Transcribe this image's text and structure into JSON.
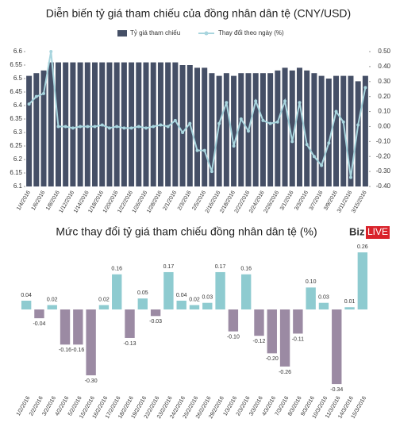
{
  "chart_data": [
    {
      "type": "bar-line",
      "title": "Diễn biến tỷ giá tham chiếu của đồng nhân dân tệ (CNY/USD)",
      "categories": [
        "1/4/2016",
        null,
        "1/6/2016",
        null,
        "1/8/2016",
        null,
        "1/12/2016",
        null,
        "1/14/2016",
        null,
        "1/18/2016",
        null,
        "1/20/2016",
        null,
        "1/22/2016",
        null,
        "1/26/2016",
        null,
        "1/28/2016",
        null,
        "2/1/2016",
        null,
        "2/3/2016",
        null,
        "2/5/2016",
        null,
        "2/16/2016",
        null,
        "2/18/2016",
        null,
        "2/22/2016",
        null,
        "2/24/2016",
        null,
        "2/26/2016",
        null,
        "3/1/2016",
        null,
        "3/3/2016",
        null,
        "3/7/2016",
        null,
        "3/9/2016",
        null,
        "3/11/2016",
        null,
        "3/15/2016"
      ],
      "series": [
        {
          "name": "Tỷ giá tham chiếu",
          "color": "#454f66",
          "values": [
            6.51,
            6.52,
            6.53,
            6.56,
            6.56,
            6.56,
            6.56,
            6.56,
            6.56,
            6.56,
            6.56,
            6.56,
            6.56,
            6.56,
            6.56,
            6.56,
            6.56,
            6.56,
            6.56,
            6.56,
            6.56,
            6.55,
            6.55,
            6.54,
            6.54,
            6.52,
            6.51,
            6.52,
            6.51,
            6.52,
            6.52,
            6.52,
            6.52,
            6.52,
            6.53,
            6.54,
            6.53,
            6.54,
            6.53,
            6.52,
            6.51,
            6.5,
            6.51,
            6.51,
            6.51,
            6.49,
            6.51
          ]
        },
        {
          "name": "Thay đổi theo ngày (%)",
          "color": "#a8d5de",
          "axis": "y2",
          "values": [
            0.15,
            0.2,
            0.22,
            0.5,
            0.0,
            0.0,
            -0.01,
            0.0,
            0.0,
            0.0,
            0.01,
            -0.01,
            0.0,
            -0.01,
            -0.01,
            0.0,
            -0.01,
            0.0,
            0.01,
            0.0,
            0.04,
            -0.04,
            0.02,
            -0.16,
            -0.16,
            -0.3,
            0.02,
            0.16,
            -0.13,
            0.05,
            -0.03,
            0.17,
            0.04,
            0.02,
            0.03,
            0.17,
            -0.1,
            0.16,
            -0.12,
            -0.2,
            -0.26,
            -0.11,
            0.1,
            0.03,
            -0.34,
            0.01,
            0.26
          ]
        }
      ],
      "ylim": [
        6.1,
        6.6
      ],
      "yticks": [
        6.6,
        6.55,
        6.5,
        6.45,
        6.4,
        6.35,
        6.3,
        6.25,
        6.2,
        6.15,
        6.1
      ],
      "y2lim": [
        -0.4,
        0.5
      ],
      "y2ticks": [
        {
          "value": 0.5,
          "label": "0.50"
        },
        {
          "value": 0.4,
          "label": "0.40"
        },
        {
          "value": 0.3,
          "label": "0.30"
        },
        {
          "value": 0.2,
          "label": "0.20"
        },
        {
          "value": 0.1,
          "label": "0.10"
        },
        {
          "value": 0,
          "label": "0.00"
        },
        {
          "value": -0.1,
          "label": "-0.10"
        },
        {
          "value": -0.2,
          "label": "-0.20"
        },
        {
          "value": -0.3,
          "label": "-0.30"
        },
        {
          "value": -0.4,
          "label": "-0.40"
        }
      ],
      "legend": "top"
    },
    {
      "type": "bar",
      "title": "Mức thay đổi tỷ giá tham chiếu đồng nhân dân tệ (%)",
      "watermark": "Biz",
      "watermark_highlight": "LIVE",
      "categories": [
        "1/2/2016",
        "2/2/2016",
        "3/2/2016",
        "4/2/2016",
        "5/2/2016",
        "15/2/2016",
        "16/2/2016",
        "17/2/2016",
        "18/2/2016",
        "19/2/2016",
        "22/2/2016",
        "23/2/2016",
        "24/2/2016",
        "25/2/2016",
        "26/2/2016",
        "29/2/2016",
        "1/3/2016",
        "2/3/2016",
        "3/3/2016",
        "4/3/2016",
        "7/3/2016",
        "8/3/2016",
        "9/3/2016",
        "10/3/2016",
        "11/3/2016",
        "14/3/2016",
        "15/3/2016"
      ],
      "values": [
        0.04,
        -0.04,
        0.02,
        -0.16,
        -0.16,
        -0.3,
        0.02,
        0.16,
        -0.13,
        0.05,
        -0.03,
        0.17,
        0.04,
        0.02,
        0.03,
        0.17,
        -0.1,
        0.16,
        -0.12,
        -0.2,
        -0.26,
        -0.11,
        0.1,
        0.03,
        -0.34,
        0.01,
        0.26
      ],
      "value_labels": [
        "0.04",
        "-0.04",
        "0.02",
        "-0.16",
        "-0.16",
        "-0.30",
        "0.02",
        "0.16",
        "-0.13",
        "0.05",
        "-0.03",
        "0.17",
        "0.04",
        "0.02",
        "0.03",
        "0.17",
        "-0.10",
        "0.16",
        "-0.12",
        "-0.20",
        "-0.26",
        "-0.11",
        "0.10",
        "0.03",
        "-0.34",
        "0.01",
        "0.26"
      ],
      "positive_color": "#8ecbd0",
      "negative_color": "#9b8aa3"
    }
  ]
}
